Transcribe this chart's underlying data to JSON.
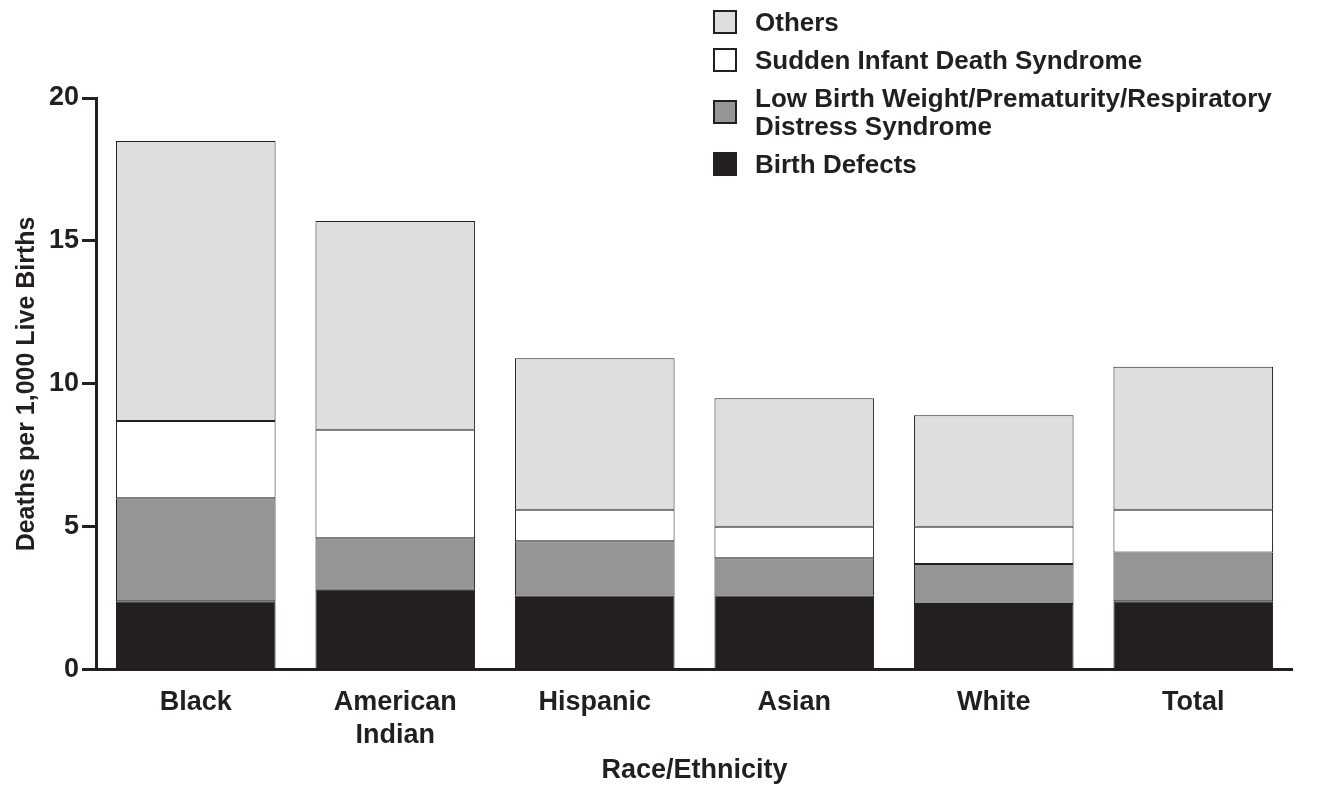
{
  "chart_data": {
    "type": "bar",
    "stacked": true,
    "categories": [
      "Black",
      "American Indian",
      "Hispanic",
      "Asian",
      "White",
      "Total"
    ],
    "xlabel": "Race/Ethnicity",
    "ylabel": "Deaths per 1,000 Live Births",
    "ylim": [
      0,
      20
    ],
    "yticks": [
      0,
      5,
      10,
      15,
      20
    ],
    "grid": false,
    "legend": "top right",
    "series": [
      {
        "name": "Birth Defects",
        "color": "#231f20",
        "values": [
          2.4,
          2.8,
          2.6,
          2.6,
          2.3,
          2.4
        ]
      },
      {
        "name": "Low Birth Weight/Prematurity/Respiratory Distress Syndrome",
        "color": "#959595",
        "values": [
          3.6,
          1.8,
          1.9,
          1.3,
          1.4,
          1.7
        ]
      },
      {
        "name": "Sudden Infant Death Syndrome",
        "color": "#ffffff",
        "values": [
          2.7,
          3.8,
          1.1,
          1.1,
          1.3,
          1.5
        ]
      },
      {
        "name": "Others",
        "color": "#dededc",
        "values": [
          9.8,
          7.3,
          5.3,
          4.5,
          3.9,
          5.0
        ]
      }
    ]
  }
}
